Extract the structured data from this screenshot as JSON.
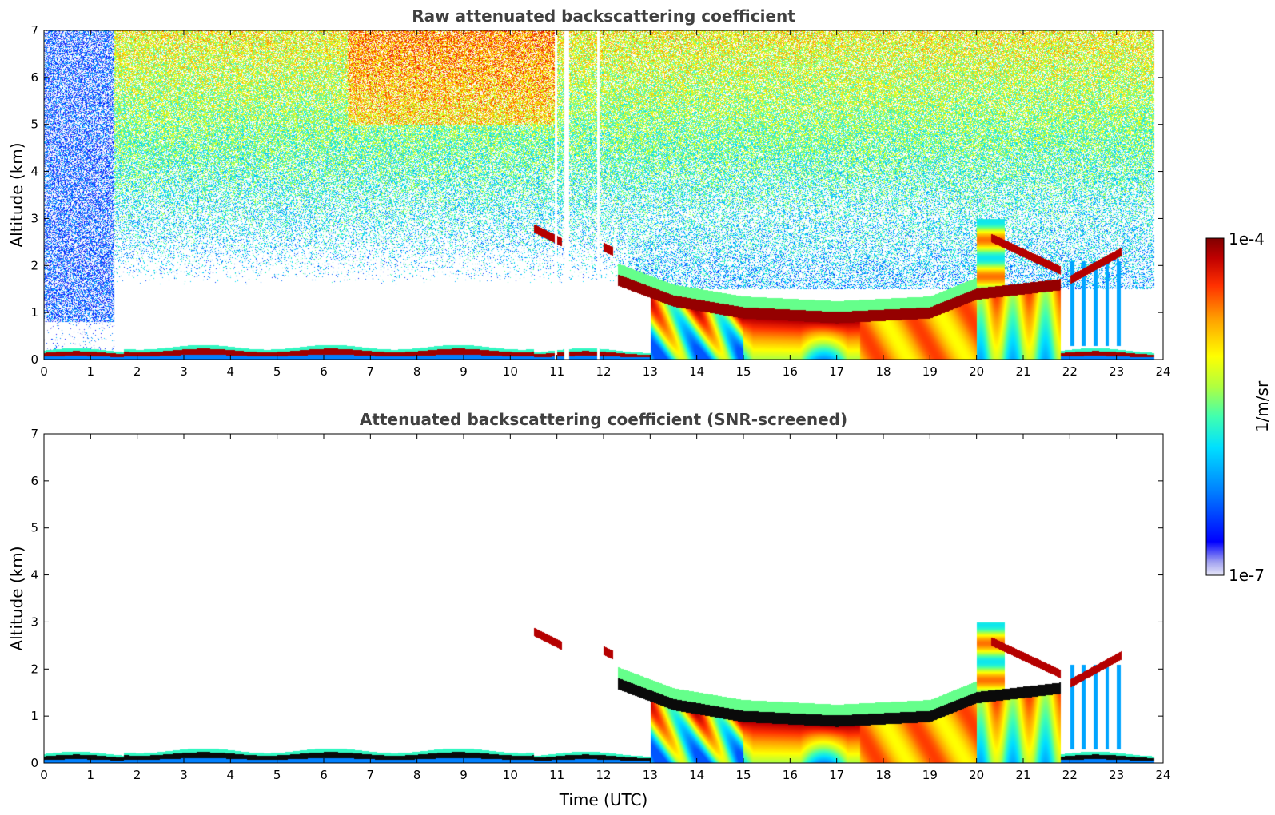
{
  "chart_data": [
    {
      "type": "heatmap",
      "title": "Raw attenuated backscattering coefficient",
      "xlabel": "",
      "ylabel": "Altitude (km)",
      "xlim": [
        0,
        24
      ],
      "ylim": [
        0,
        7
      ],
      "x_ticks": [
        "0",
        "1",
        "2",
        "3",
        "4",
        "5",
        "6",
        "7",
        "8",
        "9",
        "10",
        "11",
        "12",
        "13",
        "14",
        "15",
        "16",
        "17",
        "18",
        "19",
        "20",
        "21",
        "22",
        "23",
        "24"
      ],
      "y_ticks": [
        "0",
        "1",
        "2",
        "3",
        "4",
        "5",
        "6",
        "7"
      ],
      "features": {
        "surface_layer_top_km": 0.2,
        "pbl_cloud_base_km": [
          [
            12.3,
            1.7
          ],
          [
            13.5,
            1.25
          ],
          [
            15.0,
            1.0
          ],
          [
            17.0,
            0.9
          ],
          [
            19.0,
            1.0
          ],
          [
            20.0,
            1.4
          ],
          [
            21.8,
            1.6
          ]
        ],
        "upper_cloud_segments": [
          [
            10.5,
            2.8,
            11.1,
            2.5
          ],
          [
            12.0,
            2.4,
            12.2,
            2.3
          ],
          [
            20.3,
            2.6,
            21.8,
            1.9
          ],
          [
            22.0,
            1.7,
            23.1,
            2.3
          ]
        ],
        "noise_level": "high"
      }
    },
    {
      "type": "heatmap",
      "title": "Attenuated backscattering coefficient (SNR-screened)",
      "xlabel": "Time (UTC)",
      "ylabel": "Altitude (km)",
      "xlim": [
        0,
        24
      ],
      "ylim": [
        0,
        7
      ],
      "x_ticks": [
        "0",
        "1",
        "2",
        "3",
        "4",
        "5",
        "6",
        "7",
        "8",
        "9",
        "10",
        "11",
        "12",
        "13",
        "14",
        "15",
        "16",
        "17",
        "18",
        "19",
        "20",
        "21",
        "22",
        "23",
        "24"
      ],
      "y_ticks": [
        "0",
        "1",
        "2",
        "3",
        "4",
        "5",
        "6",
        "7"
      ],
      "features": {
        "surface_layer_top_km": 0.2,
        "pbl_cloud_base_km": [
          [
            12.3,
            1.7
          ],
          [
            13.5,
            1.25
          ],
          [
            15.0,
            1.0
          ],
          [
            17.0,
            0.9
          ],
          [
            19.0,
            1.0
          ],
          [
            20.0,
            1.4
          ],
          [
            21.8,
            1.6
          ]
        ],
        "upper_cloud_segments": [
          [
            10.5,
            2.8,
            11.1,
            2.5
          ],
          [
            12.0,
            2.4,
            12.2,
            2.3
          ],
          [
            20.3,
            2.6,
            21.8,
            1.9
          ],
          [
            22.0,
            1.7,
            23.1,
            2.3
          ]
        ],
        "noise_level": "none"
      }
    }
  ],
  "colorbar": {
    "max_label": "1e-4",
    "min_label": "1e-7",
    "unit_label": "1/m/sr",
    "colors": [
      "#e8e8f8",
      "#a0a0f0",
      "#0000ff",
      "#0080ff",
      "#00e0ff",
      "#40ffb0",
      "#b0ff40",
      "#ffff00",
      "#ffa000",
      "#ff3000",
      "#c00000",
      "#800000"
    ]
  }
}
